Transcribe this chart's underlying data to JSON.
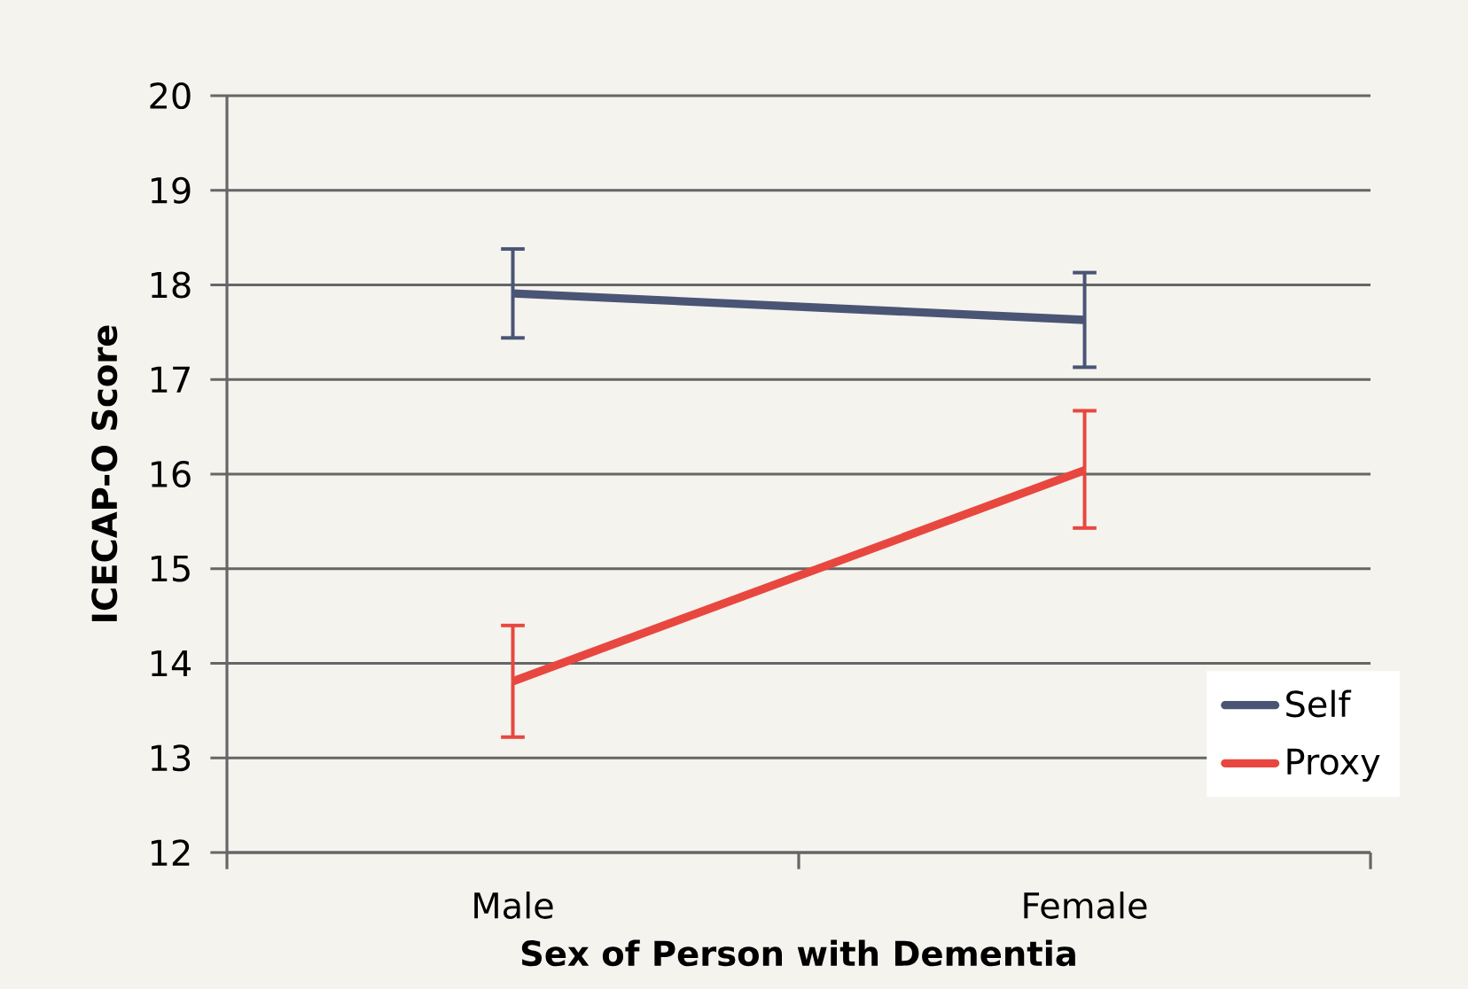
{
  "chart_data": {
    "type": "line",
    "xlabel": "Sex of Person with Dementia",
    "ylabel": "ICECAP-O Score",
    "categories": [
      "Male",
      "Female"
    ],
    "series": [
      {
        "name": "Self",
        "color": "#4a5575",
        "values": [
          17.91,
          17.63
        ],
        "errors": [
          [
            17.44,
            18.38
          ],
          [
            17.13,
            18.13
          ]
        ]
      },
      {
        "name": "Proxy",
        "color": "#e8473f",
        "values": [
          13.81,
          16.04
        ],
        "errors": [
          [
            13.22,
            14.4
          ],
          [
            15.43,
            16.67
          ]
        ]
      }
    ],
    "ylim": [
      12,
      20
    ],
    "yticks": [
      12,
      13,
      14,
      15,
      16,
      17,
      18,
      19,
      20
    ],
    "grid": "y",
    "legend": "bottom right",
    "marker": "none",
    "line_style": "solid"
  }
}
